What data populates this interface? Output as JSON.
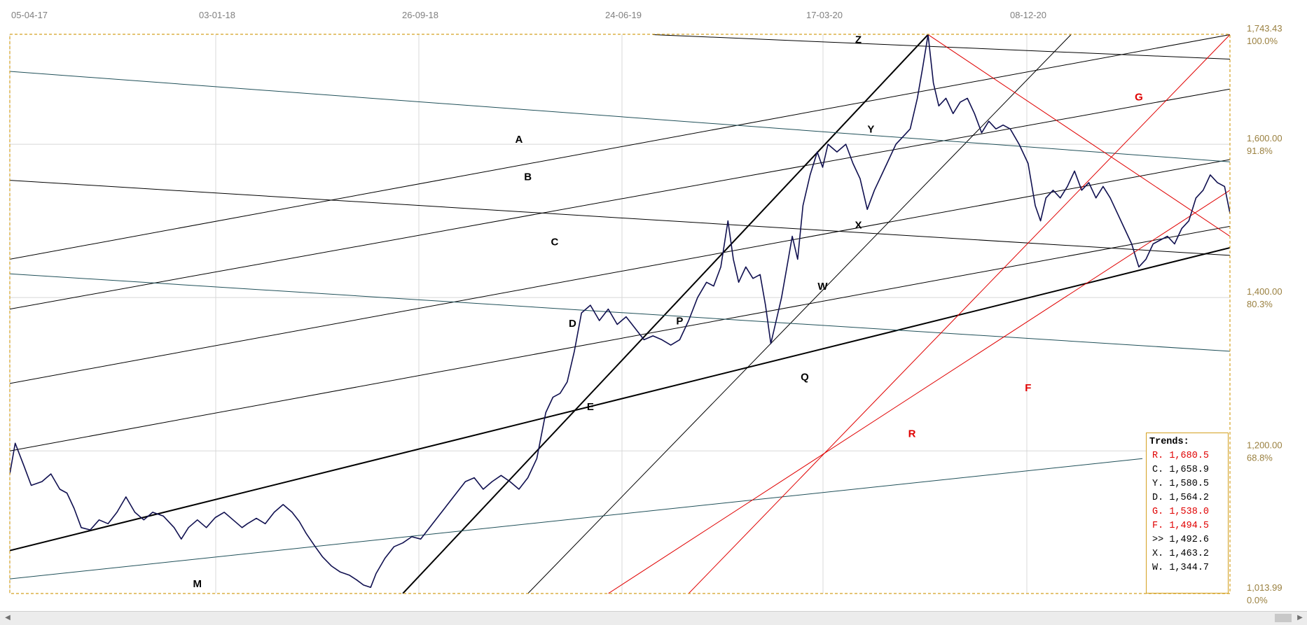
{
  "chart_data": {
    "type": "line",
    "x_tick_labels": [
      "05-04-17",
      "03-01-18",
      "26-09-18",
      "24-06-19",
      "17-03-20",
      "08-12-20"
    ],
    "y_ticks": [
      {
        "value": "1,743.43",
        "pct": "100.0%"
      },
      {
        "value": "1,600.00",
        "pct": "91.8%"
      },
      {
        "value": "1,400.00",
        "pct": "80.3%"
      },
      {
        "value": "1,200.00",
        "pct": "68.8%"
      },
      {
        "value": "1,013.99",
        "pct": "0.0%"
      }
    ],
    "ylim": [
      1013.99,
      1743.43
    ],
    "price_series": [
      [
        0,
        1170
      ],
      [
        0.3,
        1210
      ],
      [
        0.8,
        1180
      ],
      [
        1.2,
        1155
      ],
      [
        1.8,
        1160
      ],
      [
        2.3,
        1170
      ],
      [
        2.8,
        1150
      ],
      [
        3.2,
        1145
      ],
      [
        3.6,
        1125
      ],
      [
        4.0,
        1100
      ],
      [
        4.5,
        1097
      ],
      [
        5.0,
        1110
      ],
      [
        5.5,
        1105
      ],
      [
        6.0,
        1120
      ],
      [
        6.5,
        1140
      ],
      [
        7.0,
        1120
      ],
      [
        7.5,
        1110
      ],
      [
        8.0,
        1120
      ],
      [
        8.6,
        1115
      ],
      [
        9.2,
        1100
      ],
      [
        9.6,
        1085
      ],
      [
        10.0,
        1100
      ],
      [
        10.5,
        1110
      ],
      [
        11.0,
        1100
      ],
      [
        11.5,
        1113
      ],
      [
        12.0,
        1120
      ],
      [
        12.5,
        1110
      ],
      [
        13.0,
        1100
      ],
      [
        13.3,
        1105
      ],
      [
        13.8,
        1112
      ],
      [
        14.3,
        1105
      ],
      [
        14.8,
        1120
      ],
      [
        15.3,
        1130
      ],
      [
        15.8,
        1120
      ],
      [
        16.2,
        1108
      ],
      [
        16.6,
        1092
      ],
      [
        17.1,
        1075
      ],
      [
        17.5,
        1062
      ],
      [
        18.0,
        1050
      ],
      [
        18.5,
        1042
      ],
      [
        19.0,
        1038
      ],
      [
        19.4,
        1032
      ],
      [
        19.8,
        1025
      ],
      [
        20.2,
        1022
      ],
      [
        20.5,
        1040
      ],
      [
        21.0,
        1060
      ],
      [
        21.5,
        1075
      ],
      [
        22.0,
        1080
      ],
      [
        22.5,
        1088
      ],
      [
        23.0,
        1085
      ],
      [
        23.5,
        1100
      ],
      [
        24.0,
        1115
      ],
      [
        24.5,
        1130
      ],
      [
        25.0,
        1145
      ],
      [
        25.5,
        1160
      ],
      [
        26.0,
        1165
      ],
      [
        26.5,
        1150
      ],
      [
        27.0,
        1160
      ],
      [
        27.5,
        1168
      ],
      [
        28.0,
        1160
      ],
      [
        28.5,
        1150
      ],
      [
        29.0,
        1165
      ],
      [
        29.5,
        1190
      ],
      [
        30.0,
        1250
      ],
      [
        30.4,
        1270
      ],
      [
        30.8,
        1275
      ],
      [
        31.2,
        1290
      ],
      [
        31.6,
        1330
      ],
      [
        32.0,
        1380
      ],
      [
        32.5,
        1390
      ],
      [
        33.0,
        1370
      ],
      [
        33.5,
        1385
      ],
      [
        34.0,
        1365
      ],
      [
        34.5,
        1375
      ],
      [
        35.0,
        1360
      ],
      [
        35.5,
        1345
      ],
      [
        36.0,
        1350
      ],
      [
        36.5,
        1345
      ],
      [
        37.0,
        1338
      ],
      [
        37.5,
        1345
      ],
      [
        38.0,
        1370
      ],
      [
        38.5,
        1400
      ],
      [
        39.0,
        1420
      ],
      [
        39.4,
        1415
      ],
      [
        39.8,
        1440
      ],
      [
        40.2,
        1500
      ],
      [
        40.5,
        1450
      ],
      [
        40.8,
        1420
      ],
      [
        41.2,
        1440
      ],
      [
        41.6,
        1425
      ],
      [
        42.0,
        1430
      ],
      [
        42.3,
        1390
      ],
      [
        42.6,
        1340
      ],
      [
        42.9,
        1370
      ],
      [
        43.2,
        1400
      ],
      [
        43.5,
        1440
      ],
      [
        43.8,
        1480
      ],
      [
        44.1,
        1450
      ],
      [
        44.4,
        1520
      ],
      [
        44.8,
        1560
      ],
      [
        45.2,
        1590
      ],
      [
        45.5,
        1570
      ],
      [
        45.8,
        1600
      ],
      [
        46.3,
        1590
      ],
      [
        46.8,
        1600
      ],
      [
        47.2,
        1575
      ],
      [
        47.6,
        1555
      ],
      [
        48.0,
        1515
      ],
      [
        48.4,
        1540
      ],
      [
        48.8,
        1560
      ],
      [
        49.2,
        1580
      ],
      [
        49.6,
        1600
      ],
      [
        50.0,
        1610
      ],
      [
        50.4,
        1620
      ],
      [
        50.8,
        1660
      ],
      [
        51.1,
        1700
      ],
      [
        51.4,
        1743
      ],
      [
        51.7,
        1680
      ],
      [
        52.0,
        1650
      ],
      [
        52.4,
        1660
      ],
      [
        52.8,
        1640
      ],
      [
        53.2,
        1655
      ],
      [
        53.6,
        1660
      ],
      [
        54.0,
        1640
      ],
      [
        54.4,
        1615
      ],
      [
        54.8,
        1630
      ],
      [
        55.2,
        1620
      ],
      [
        55.6,
        1625
      ],
      [
        56.0,
        1620
      ],
      [
        56.5,
        1600
      ],
      [
        57.0,
        1575
      ],
      [
        57.4,
        1520
      ],
      [
        57.7,
        1500
      ],
      [
        58.0,
        1530
      ],
      [
        58.4,
        1540
      ],
      [
        58.8,
        1530
      ],
      [
        59.2,
        1545
      ],
      [
        59.6,
        1565
      ],
      [
        60.0,
        1540
      ],
      [
        60.4,
        1550
      ],
      [
        60.8,
        1530
      ],
      [
        61.2,
        1545
      ],
      [
        61.6,
        1530
      ],
      [
        62.0,
        1510
      ],
      [
        62.4,
        1490
      ],
      [
        62.8,
        1470
      ],
      [
        63.2,
        1440
      ],
      [
        63.6,
        1450
      ],
      [
        64.0,
        1470
      ],
      [
        64.4,
        1475
      ],
      [
        64.8,
        1480
      ],
      [
        65.2,
        1470
      ],
      [
        65.6,
        1490
      ],
      [
        66.0,
        1500
      ],
      [
        66.4,
        1530
      ],
      [
        66.8,
        1540
      ],
      [
        67.2,
        1560
      ],
      [
        67.6,
        1550
      ],
      [
        68.0,
        1545
      ],
      [
        68.3,
        1510
      ],
      [
        68.6,
        1505
      ]
    ],
    "series_labels": [
      {
        "text": "A",
        "color": "#000000",
        "x": 28.5,
        "y": 1602
      },
      {
        "text": "B",
        "color": "#000000",
        "x": 29.0,
        "y": 1553
      },
      {
        "text": "C",
        "color": "#000000",
        "x": 30.5,
        "y": 1468
      },
      {
        "text": "D",
        "color": "#000000",
        "x": 31.5,
        "y": 1362
      },
      {
        "text": "E",
        "color": "#000000",
        "x": 32.5,
        "y": 1253
      },
      {
        "text": "M",
        "color": "#000000",
        "x": 10.5,
        "y": 1022
      },
      {
        "text": "P",
        "color": "#000000",
        "x": 37.5,
        "y": 1365
      },
      {
        "text": "Q",
        "color": "#000000",
        "x": 44.5,
        "y": 1292
      },
      {
        "text": "W",
        "color": "#000000",
        "x": 45.5,
        "y": 1410
      },
      {
        "text": "X",
        "color": "#000000",
        "x": 47.5,
        "y": 1490
      },
      {
        "text": "Y",
        "color": "#000000",
        "x": 48.2,
        "y": 1615
      },
      {
        "text": "Z",
        "color": "#000000",
        "x": 47.5,
        "y": 1732
      },
      {
        "text": "F",
        "color": "#e00000",
        "x": 57.0,
        "y": 1278
      },
      {
        "text": "G",
        "color": "#e00000",
        "x": 63.2,
        "y": 1657
      },
      {
        "text": "R",
        "color": "#e00000",
        "x": 50.5,
        "y": 1218
      }
    ],
    "trend_lines": [
      {
        "id": "A",
        "color": "#000000",
        "width": 1,
        "p1": [
          0,
          1450
        ],
        "p2": [
          68.3,
          1743
        ]
      },
      {
        "id": "B",
        "color": "#000000",
        "width": 1,
        "p1": [
          0,
          1385
        ],
        "p2": [
          68.3,
          1672
        ]
      },
      {
        "id": "C",
        "color": "#000000",
        "width": 1,
        "p1": [
          0,
          1288
        ],
        "p2": [
          68.3,
          1580
        ]
      },
      {
        "id": "D",
        "color": "#000000",
        "width": 1,
        "p1": [
          0,
          1200
        ],
        "p2": [
          68.3,
          1493
        ]
      },
      {
        "id": "E",
        "color": "#000000",
        "width": 2,
        "p1": [
          0,
          1070
        ],
        "p2": [
          68.3,
          1465
        ]
      },
      {
        "id": "P",
        "color": "#000000",
        "width": 2,
        "p1": [
          22,
          1014
        ],
        "p2": [
          51.4,
          1743
        ]
      },
      {
        "id": "Q",
        "color": "#000000",
        "width": 1,
        "p1": [
          29,
          1014
        ],
        "p2": [
          59.4,
          1743
        ]
      },
      {
        "id": "X",
        "color": "#000000",
        "width": 1,
        "p1": [
          0,
          1553
        ],
        "p2": [
          68.3,
          1455
        ]
      },
      {
        "id": "Y",
        "color": "#1f4f58",
        "width": 1,
        "p1": [
          0,
          1695
        ],
        "p2": [
          68.3,
          1577
        ]
      },
      {
        "id": "Z",
        "color": "#000000",
        "width": 1,
        "p1": [
          36,
          1743
        ],
        "p2": [
          68.3,
          1711
        ]
      },
      {
        "id": "W",
        "color": "#1f4f58",
        "width": 1,
        "p1": [
          0,
          1431
        ],
        "p2": [
          68.3,
          1330
        ]
      },
      {
        "id": "M",
        "color": "#1f4f58",
        "width": 1,
        "p1": [
          0,
          1033
        ],
        "p2": [
          63.4,
          1190
        ]
      },
      {
        "id": "F",
        "color": "#e00000",
        "width": 1,
        "p1": [
          33.5,
          1014
        ],
        "p2": [
          68.3,
          1540
        ]
      },
      {
        "id": "R",
        "color": "#e00000",
        "width": 1,
        "p1": [
          38,
          1014
        ],
        "p2": [
          68.3,
          1743
        ]
      },
      {
        "id": "G",
        "color": "#e00000",
        "width": 1,
        "p1": [
          51.4,
          1743
        ],
        "p2": [
          68.3,
          1480
        ]
      }
    ],
    "x_range": [
      0,
      68.3
    ],
    "grid": true,
    "legend_position": "bottom-right"
  },
  "trends_panel": {
    "title": "Trends:",
    "rows": [
      {
        "label": "R.",
        "value": "1,680.5",
        "color": "#e00000"
      },
      {
        "label": "C.",
        "value": "1,658.9",
        "color": "#000000"
      },
      {
        "label": "Y.",
        "value": "1,580.5",
        "color": "#000000"
      },
      {
        "label": "D.",
        "value": "1,564.2",
        "color": "#000000"
      },
      {
        "label": "G.",
        "value": "1,538.0",
        "color": "#e00000"
      },
      {
        "label": "F.",
        "value": "1,494.5",
        "color": "#e00000"
      },
      {
        "label": ">>",
        "value": "1,492.6",
        "color": "#000000"
      },
      {
        "label": "X.",
        "value": "1,463.2",
        "color": "#000000"
      },
      {
        "label": "W.",
        "value": "1,344.7",
        "color": "#000000"
      }
    ]
  },
  "colors": {
    "price_line": "#101050",
    "plot_border": "#d4a020",
    "grid": "#d8d8d8"
  },
  "scrollbar": {
    "left_icon": "arrow-left-icon",
    "right_icon": "arrow-right-icon"
  }
}
